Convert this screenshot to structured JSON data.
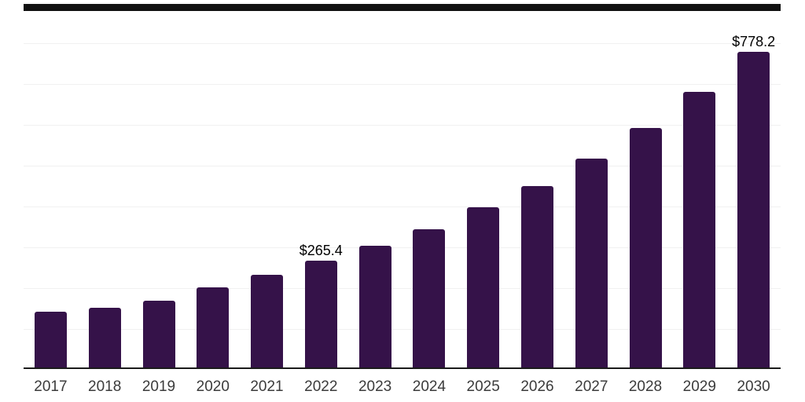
{
  "chart_data": {
    "type": "bar",
    "title": "",
    "xlabel": "",
    "ylabel": "",
    "categories": [
      "2017",
      "2018",
      "2019",
      "2020",
      "2021",
      "2022",
      "2023",
      "2024",
      "2025",
      "2026",
      "2027",
      "2028",
      "2029",
      "2030"
    ],
    "values": [
      141,
      150,
      167,
      201,
      231,
      265.4,
      302,
      343,
      396,
      449,
      516,
      591,
      680,
      778.2
    ],
    "data_labels": {
      "2022": "$265.4",
      "2030": "$778.2"
    },
    "ylim": [
      0,
      900
    ],
    "gridline_interval": 100,
    "grid": "horizontal",
    "legend": "none",
    "y_axis_labels_visible": false
  },
  "colors": {
    "background": "#ffffff",
    "bar": "#351249",
    "axis_line": "#1b1b1b",
    "gridline": "#f1f1f1",
    "x_tick_label": "#3b3b3b",
    "data_label": "#000000",
    "top_scrollbar": "#101010"
  }
}
